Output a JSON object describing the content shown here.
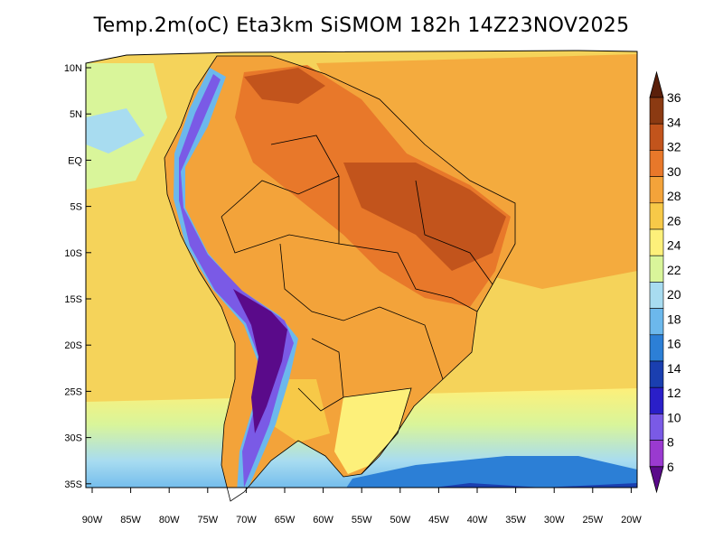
{
  "header": {
    "title": "Temp.2m(oC) Eta3km SiSMOM 182h 14Z23NOV2025"
  },
  "axes": {
    "lat_labels": [
      "10N",
      "5N",
      "EQ",
      "5S",
      "10S",
      "15S",
      "20S",
      "25S",
      "30S",
      "35S"
    ],
    "lon_labels": [
      "90W",
      "85W",
      "80W",
      "75W",
      "70W",
      "65W",
      "60W",
      "55W",
      "50W",
      "45W",
      "40W",
      "35W",
      "30W",
      "25W",
      "20W"
    ]
  },
  "colorbar": {
    "labels": [
      "36",
      "34",
      "32",
      "30",
      "28",
      "26",
      "24",
      "22",
      "20",
      "18",
      "16",
      "14",
      "12",
      "10",
      "8",
      "6"
    ],
    "colors": [
      "#5a1f0a",
      "#8b3a12",
      "#c2541c",
      "#e8782a",
      "#f3a33a",
      "#f7c948",
      "#fdf07a",
      "#d9f59a",
      "#a8dcf0",
      "#6cb8ec",
      "#2c7fd6",
      "#1a3fb0",
      "#2a1fc8",
      "#7a5ae6",
      "#9a3ad0",
      "#5a0a8a"
    ]
  },
  "map": {
    "ocean_color": "#f5d35a",
    "south_cold_color": "#a8dcf0",
    "land_warm_color": "#f3a33a",
    "land_hot_color": "#d9631e",
    "andes_color": "#5a2fb0"
  }
}
